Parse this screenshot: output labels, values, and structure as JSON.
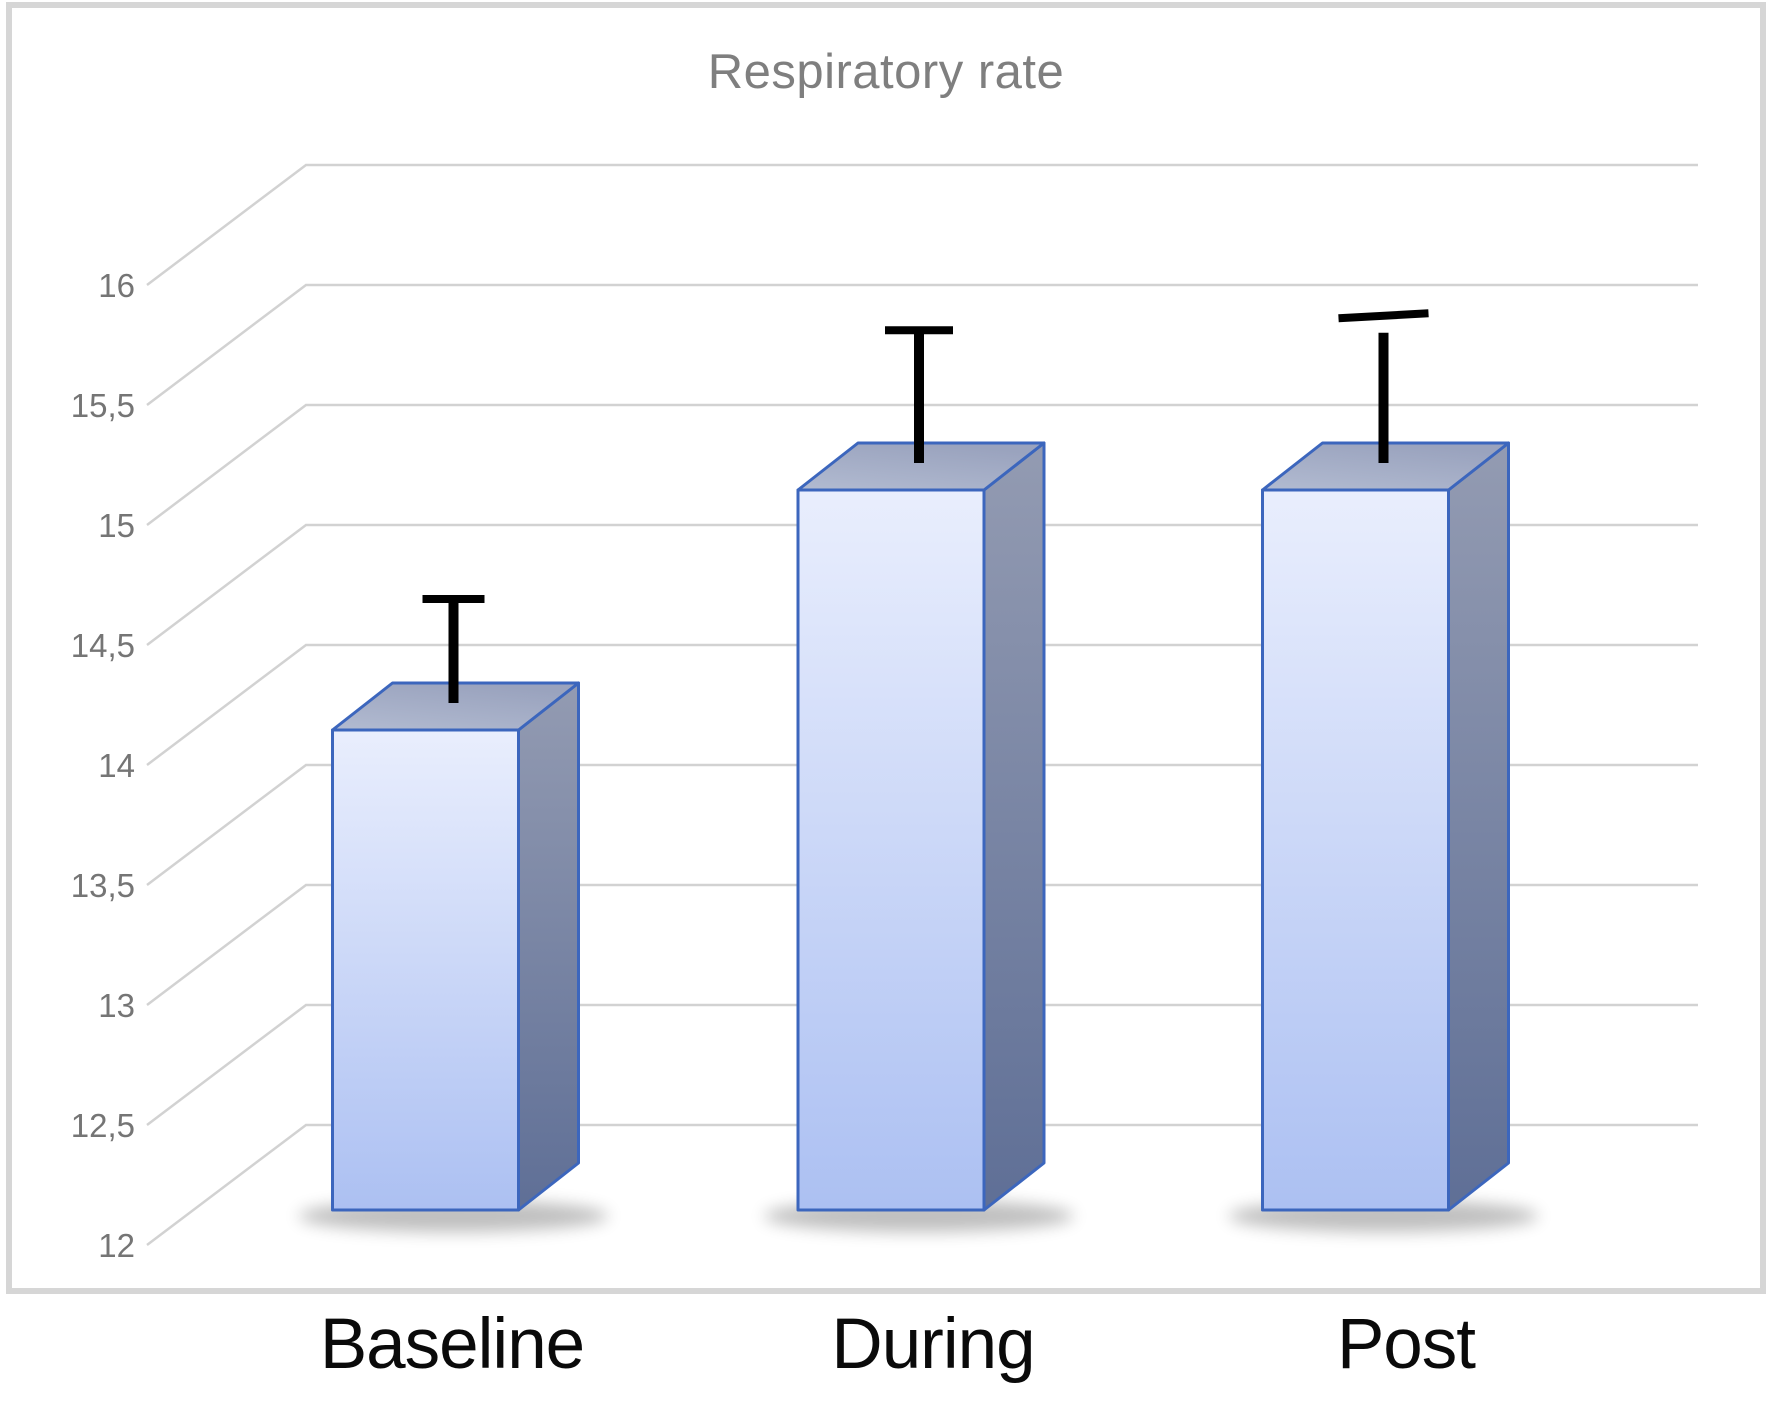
{
  "chart_data": {
    "type": "bar",
    "variant": "3d-column-perspective",
    "title": "Respiratory rate",
    "categories": [
      "Baseline",
      "During",
      "Post"
    ],
    "values": [
      14.0,
      15.0,
      15.0
    ],
    "errors_upper": [
      0.45,
      0.57,
      0.63
    ],
    "y_ticks": [
      {
        "value": 16,
        "label": "16"
      },
      {
        "value": 15.5,
        "label": "15,5"
      },
      {
        "value": 15,
        "label": "15"
      },
      {
        "value": 14.5,
        "label": "14,5"
      },
      {
        "value": 14,
        "label": "14"
      },
      {
        "value": 13.5,
        "label": "13,5"
      },
      {
        "value": 13,
        "label": "13"
      },
      {
        "value": 12.5,
        "label": "12,5"
      },
      {
        "value": 12,
        "label": "12"
      }
    ],
    "ylim": [
      12,
      16
    ],
    "xlabel": "",
    "ylabel": "",
    "grid": true,
    "legend": "none",
    "decimal_separator": ",",
    "colors": {
      "background": "#ffffff",
      "chart_border": "#d6d6d6",
      "gridline": "#d2d2d2",
      "title_text": "#7f7f7f",
      "tick_text": "#757575",
      "category_text": "#0a0a0a",
      "bar_front_light": "#e9eefd",
      "bar_front_dark": "#acc0f2",
      "bar_top_front": "#b2bbd1",
      "bar_top_back": "#9aa3be",
      "bar_side_light": "#939bb2",
      "bar_side_dark": "#5f6f96",
      "bar_outline": "#3c66bd",
      "error_bar": "#000000",
      "shadow": "#000000"
    }
  }
}
